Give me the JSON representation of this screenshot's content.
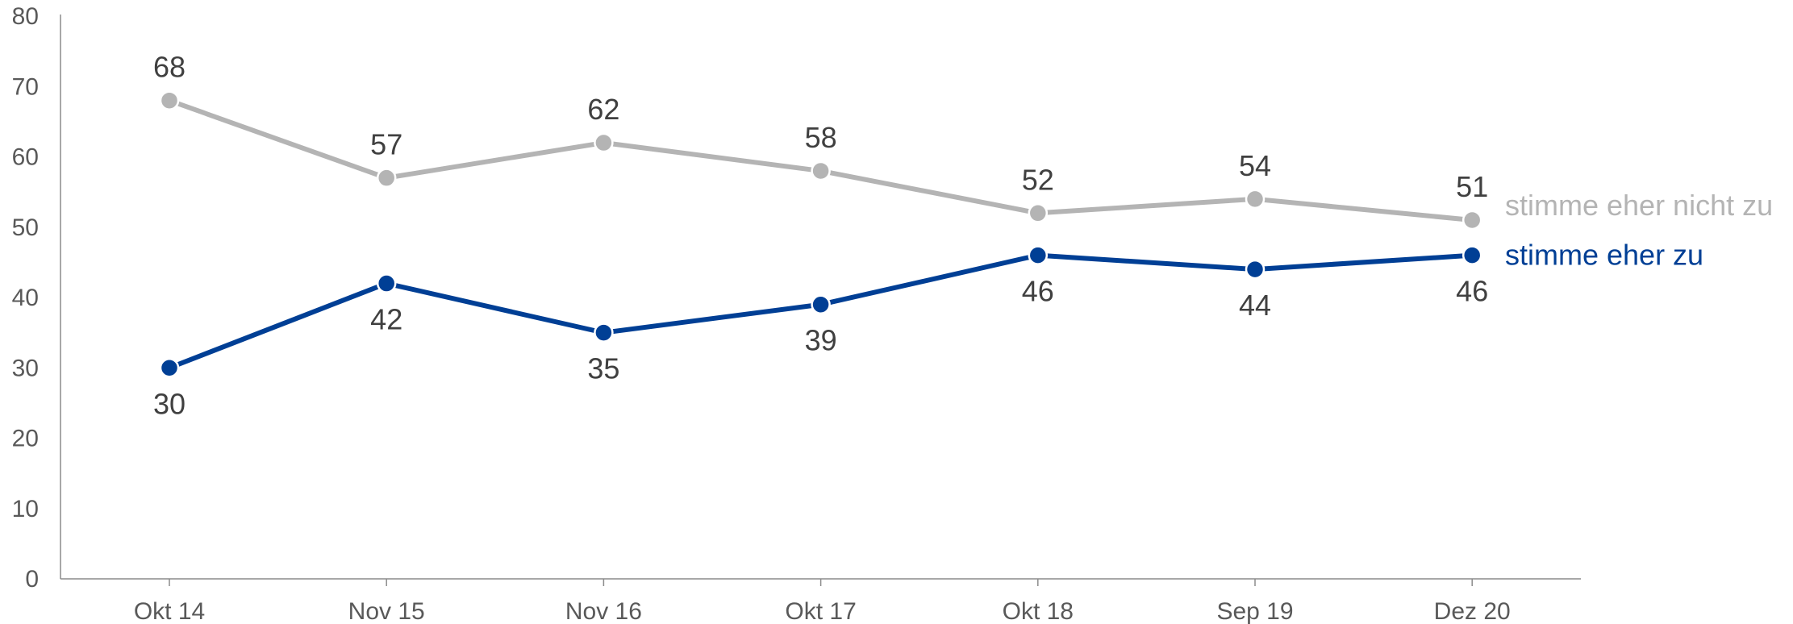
{
  "chart_data": {
    "type": "line",
    "categories": [
      "Okt 14",
      "Nov 15",
      "Nov 16",
      "Okt 17",
      "Okt 18",
      "Sep 19",
      "Dez 20"
    ],
    "ylim": [
      0,
      80
    ],
    "yticks": [
      0,
      10,
      20,
      30,
      40,
      50,
      60,
      70,
      80
    ],
    "grid": false,
    "legend": "inline-right",
    "series": [
      {
        "name": "stimme eher nicht zu",
        "values": [
          68,
          57,
          62,
          58,
          52,
          54,
          51
        ],
        "color": "#b4b4b4",
        "label_position": "above"
      },
      {
        "name": "stimme eher zu",
        "values": [
          30,
          42,
          35,
          39,
          46,
          44,
          46
        ],
        "color": "#003f95",
        "label_position": "below"
      }
    ]
  }
}
